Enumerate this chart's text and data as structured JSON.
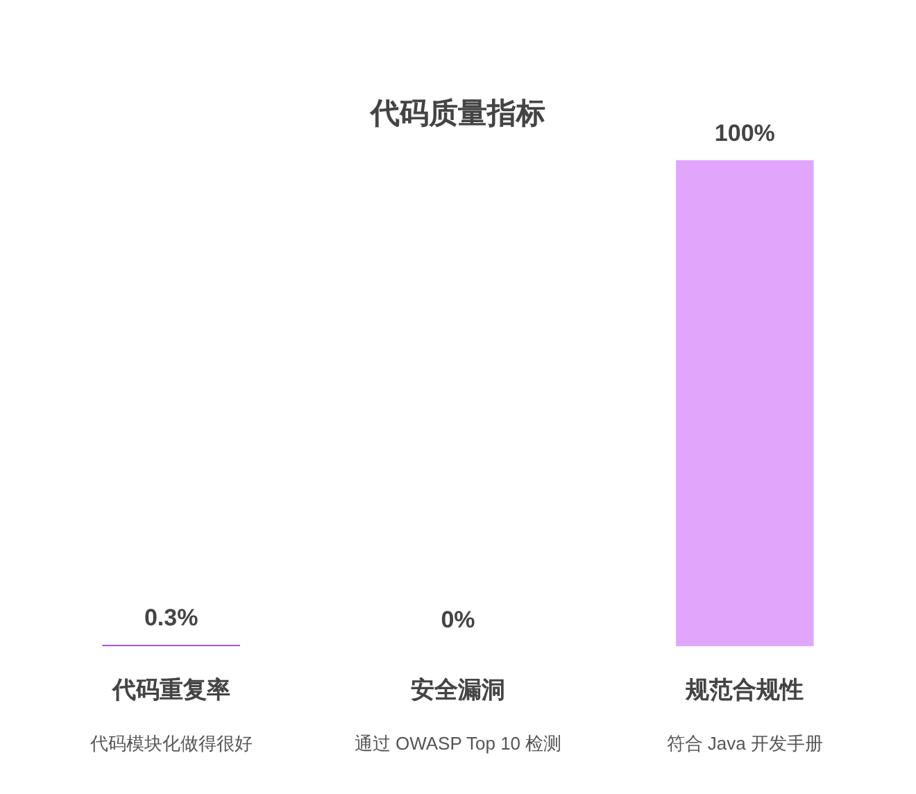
{
  "chart_data": {
    "type": "bar",
    "title": "代码质量指标",
    "categories": [
      "代码重复率",
      "安全漏洞",
      "规范合规性"
    ],
    "values": [
      0.3,
      0,
      100
    ],
    "value_labels": [
      "0.3%",
      "0%",
      "100%"
    ],
    "colors": [
      "#a855d4",
      "#c264f0",
      "#e0a6fc"
    ],
    "annotations": [
      "代码模块化做得很好",
      "通过 OWASP Top 10 检测",
      "符合 Java 开发手册"
    ]
  }
}
